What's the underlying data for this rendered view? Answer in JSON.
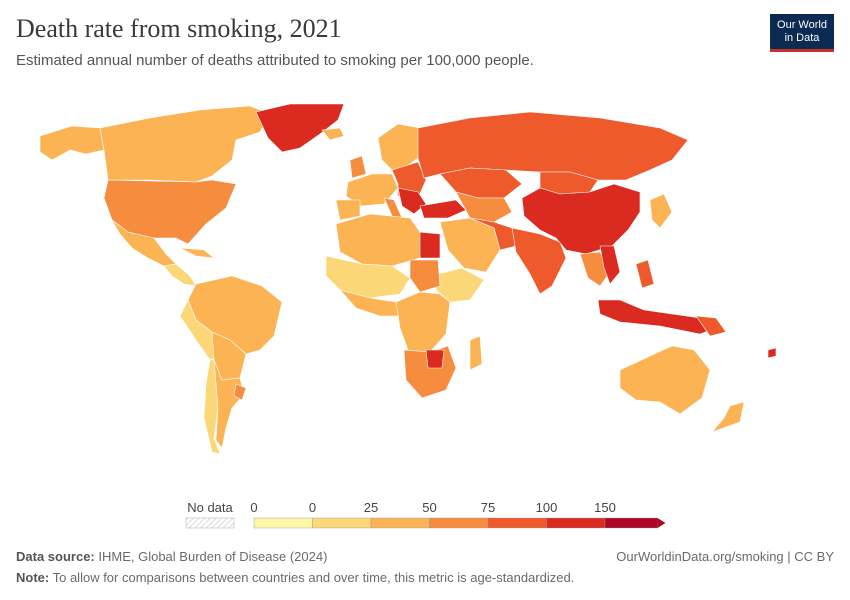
{
  "header": {
    "title": "Death rate from smoking, 2021",
    "subtitle": "Estimated annual number of deaths attributed to smoking per 100,000 people."
  },
  "logo": {
    "line1": "Our World",
    "line2": "in Data"
  },
  "legend": {
    "no_data_label": "No data",
    "ticks": [
      "0",
      "0",
      "25",
      "50",
      "75",
      "100",
      "150"
    ],
    "colors": [
      "#fdf6a8",
      "#fcd777",
      "#fbb353",
      "#f58c3e",
      "#ef5a2c",
      "#db2a1f",
      "#ac0727"
    ]
  },
  "footer": {
    "source_label": "Data source:",
    "source_text": "IHME, Global Burden of Disease (2024)",
    "url_text": "OurWorldinData.org/smoking | CC BY",
    "note_label": "Note:",
    "note_text": "To allow for comparisons between countries and over time, this metric is age-standardized."
  }
}
